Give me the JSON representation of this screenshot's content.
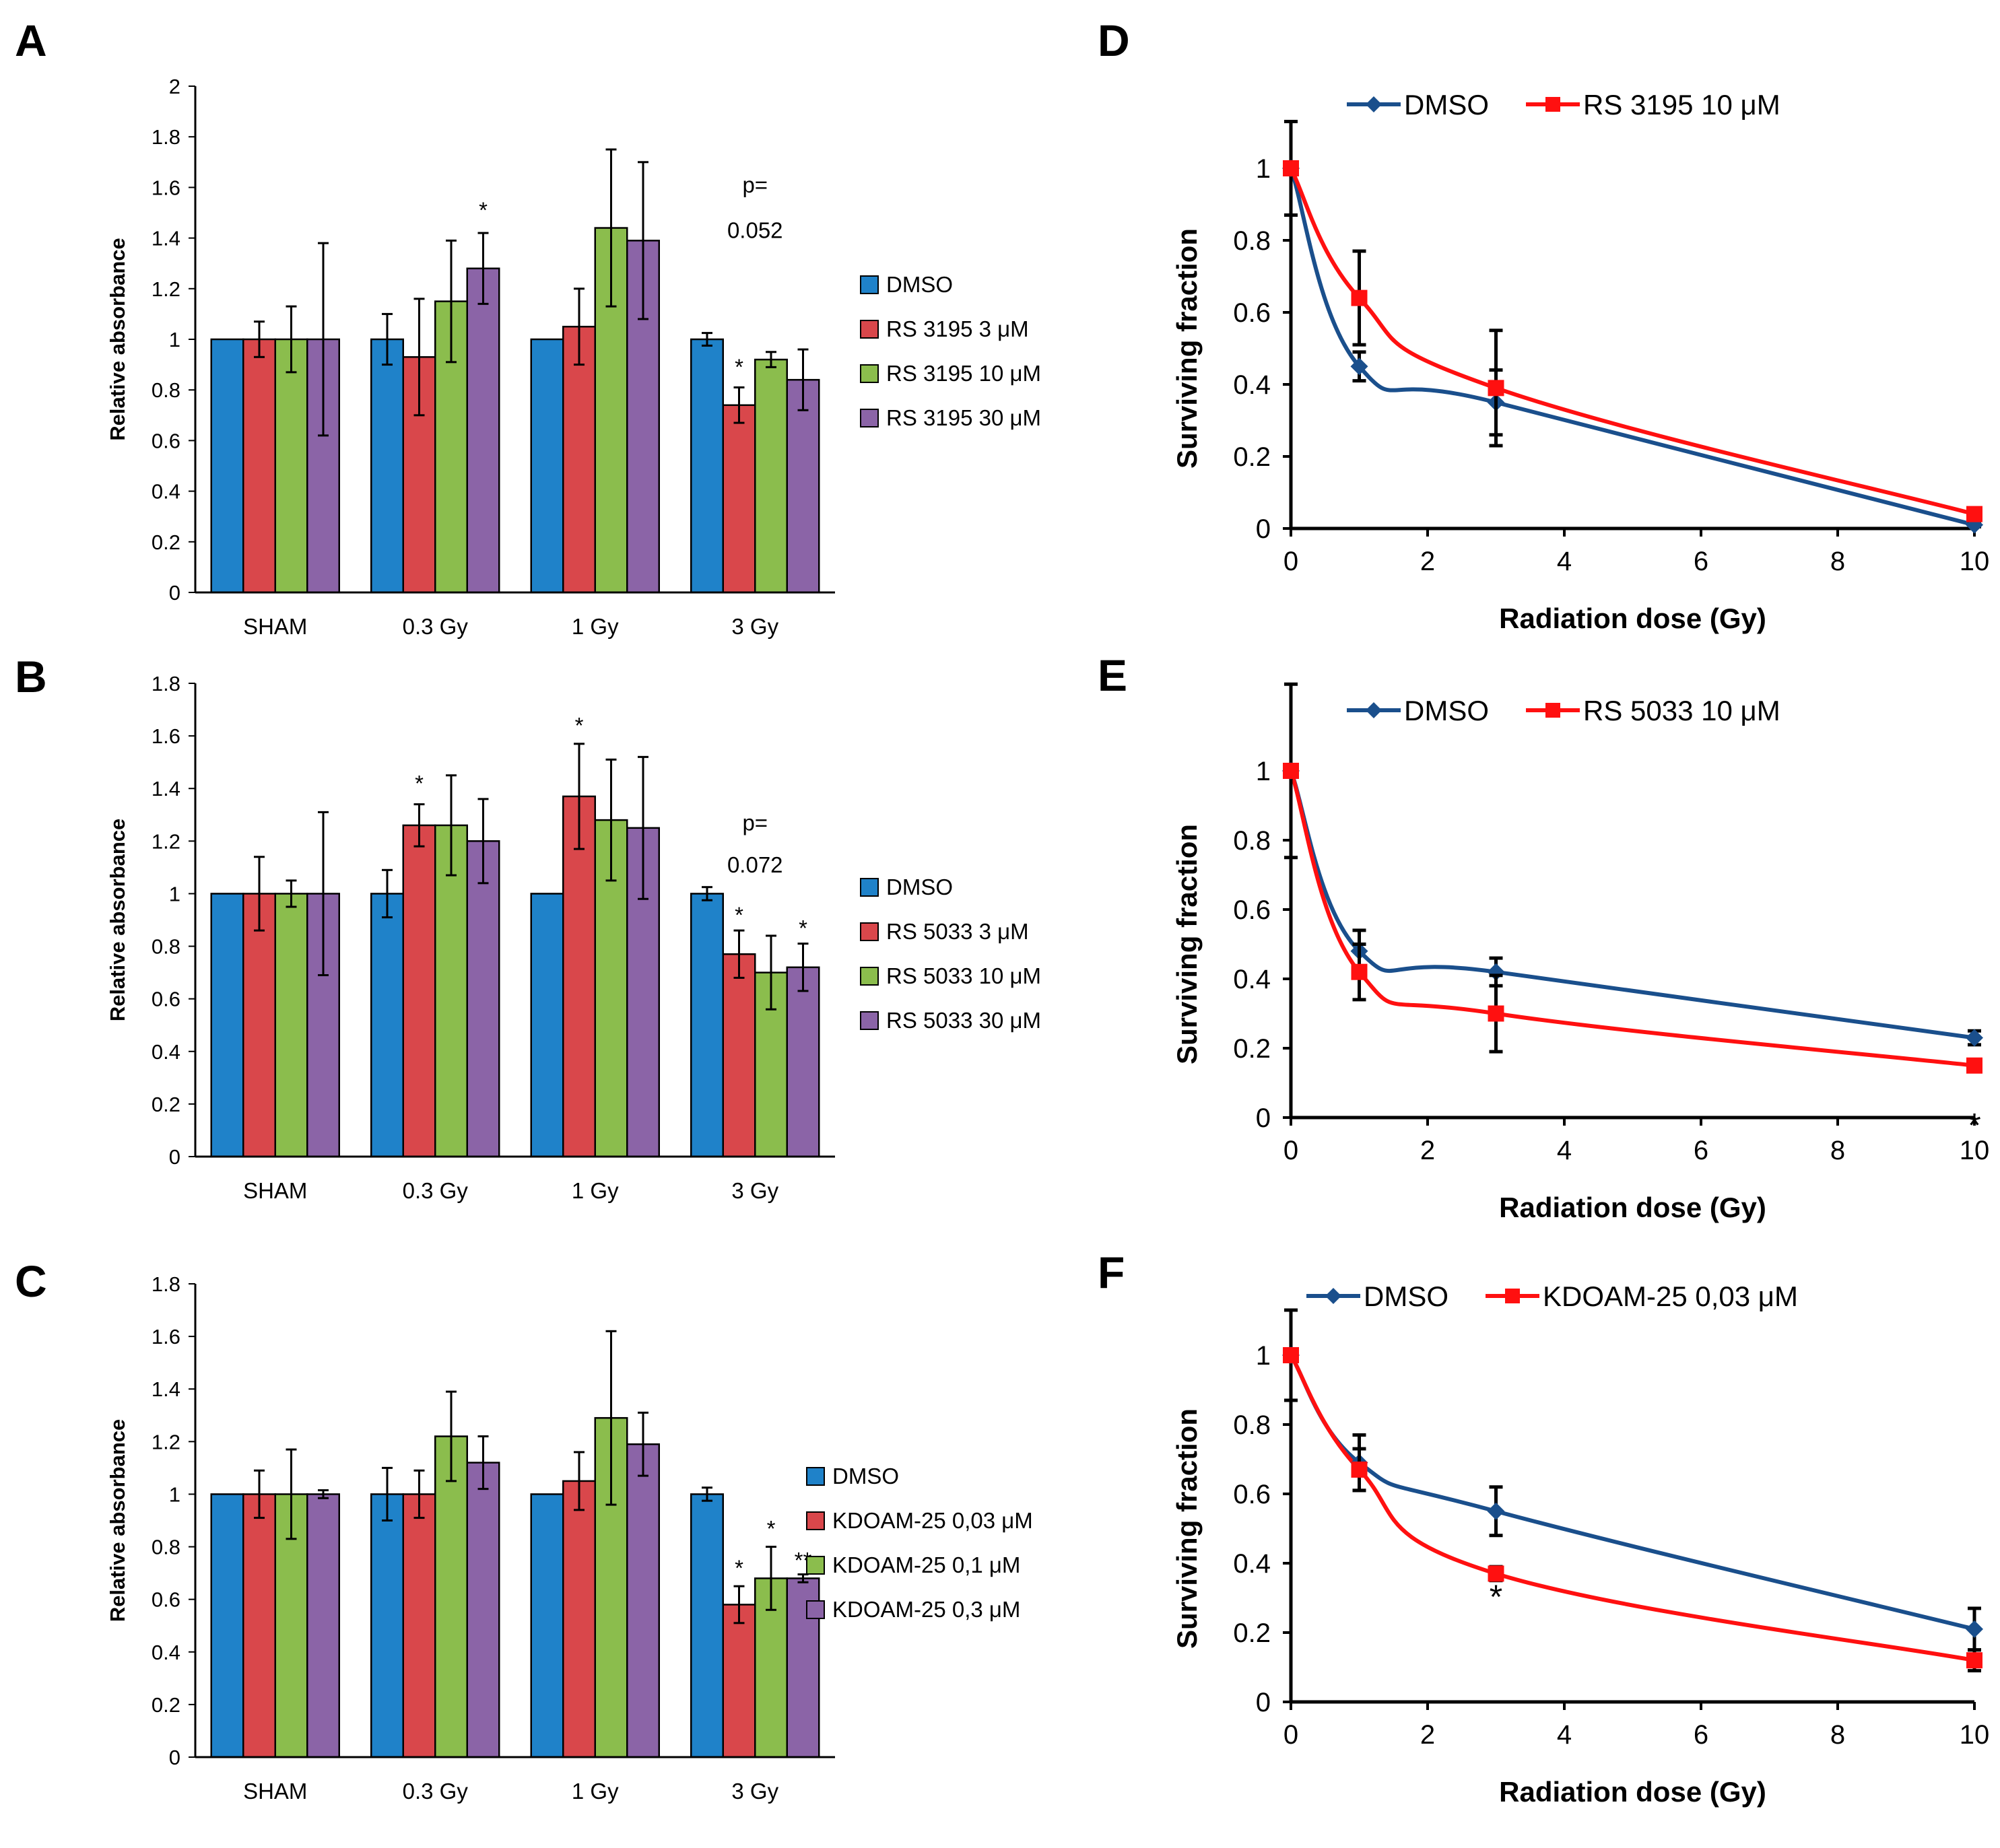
{
  "colors": {
    "dmso_bar": "#1f82c9",
    "drug_low": "#d9474b",
    "drug_mid": "#8bbd4d",
    "drug_high": "#8b64a7",
    "dmso_line": "#1a4f8c",
    "drug_line": "#ff1010",
    "axis": "#000000"
  },
  "chart_data": [
    {
      "id": "A",
      "panel_label": "A",
      "type": "bar",
      "ylabel": "Relative  absorbance",
      "ylim": [
        0,
        2
      ],
      "yticks": [
        "0",
        "0.2",
        "0.4",
        "0.6",
        "0.8",
        "1",
        "1.2",
        "1.4",
        "1.6",
        "1.8",
        "2"
      ],
      "categories": [
        "SHAM",
        "0.3 Gy",
        "1 Gy",
        "3 Gy"
      ],
      "series": [
        {
          "name": "DMSO",
          "values": [
            1,
            1,
            1,
            1
          ],
          "errors": [
            0,
            0.1,
            0,
            0.025
          ]
        },
        {
          "name": "RS 3195 3 μM",
          "values": [
            1,
            0.93,
            1.05,
            0.74
          ],
          "errors": [
            0.07,
            0.23,
            0.15,
            0.07
          ]
        },
        {
          "name": "RS 3195 10 μM",
          "values": [
            1,
            1.15,
            1.44,
            0.92
          ],
          "errors": [
            0.13,
            0.24,
            0.31,
            0.03
          ]
        },
        {
          "name": "RS 3195 30 μM",
          "values": [
            1,
            1.28,
            1.39,
            0.84
          ],
          "errors": [
            0.38,
            0.14,
            0.31,
            0.12
          ]
        }
      ],
      "annotations": [
        {
          "text": "*",
          "category": 1,
          "series": 3,
          "y": 1.48
        },
        {
          "text": "*",
          "category": 3,
          "series": 1,
          "y": 0.86
        },
        {
          "text": "p=",
          "category": 3,
          "y": 1.58
        },
        {
          "text": "0.052",
          "category": 3,
          "y": 1.4
        }
      ]
    },
    {
      "id": "B",
      "panel_label": "B",
      "type": "bar",
      "ylabel": "Relative absorbance",
      "ylim": [
        0,
        1.8
      ],
      "yticks": [
        "0",
        "0.2",
        "0.4",
        "0.6",
        "0.8",
        "1",
        "1.2",
        "1.4",
        "1.6",
        "1.8"
      ],
      "categories": [
        "SHAM",
        "0.3 Gy",
        "1 Gy",
        "3 Gy"
      ],
      "series": [
        {
          "name": "DMSO",
          "values": [
            1,
            1,
            1,
            1
          ],
          "errors": [
            0,
            0.09,
            0,
            0.025
          ]
        },
        {
          "name": "RS 5033 3 μM",
          "values": [
            1,
            1.26,
            1.37,
            0.77
          ],
          "errors": [
            0.14,
            0.08,
            0.2,
            0.09
          ]
        },
        {
          "name": "RS 5033 10 μM",
          "values": [
            1,
            1.26,
            1.28,
            0.7
          ],
          "errors": [
            0.05,
            0.19,
            0.23,
            0.14
          ]
        },
        {
          "name": "RS 5033 30 μM",
          "values": [
            1,
            1.2,
            1.25,
            0.72
          ],
          "errors": [
            0.31,
            0.16,
            0.27,
            0.09
          ]
        }
      ],
      "annotations": [
        {
          "text": "*",
          "category": 1,
          "series": 1,
          "y": 1.39
        },
        {
          "text": "*",
          "category": 2,
          "series": 1,
          "y": 1.61
        },
        {
          "text": "*",
          "category": 3,
          "series": 1,
          "y": 0.89
        },
        {
          "text": "*",
          "category": 3,
          "series": 3,
          "y": 0.84
        },
        {
          "text": "p=",
          "category": 3,
          "y": 1.24
        },
        {
          "text": "0.072",
          "category": 3,
          "y": 1.08
        }
      ]
    },
    {
      "id": "C",
      "panel_label": "C",
      "type": "bar",
      "ylabel": "Relative absorbance",
      "ylim": [
        0,
        1.8
      ],
      "yticks": [
        "0",
        "0.2",
        "0.4",
        "0.6",
        "0.8",
        "1",
        "1.2",
        "1.4",
        "1.6",
        "1.8"
      ],
      "categories": [
        "SHAM",
        "0.3 Gy",
        "1 Gy",
        "3 Gy"
      ],
      "series": [
        {
          "name": "DMSO",
          "values": [
            1,
            1,
            1,
            1
          ],
          "errors": [
            0,
            0.1,
            0,
            0.025
          ]
        },
        {
          "name": "KDOAM-25 0,03 μM",
          "values": [
            1,
            1,
            1.05,
            0.58
          ],
          "errors": [
            0.09,
            0.09,
            0.11,
            0.07
          ]
        },
        {
          "name": "KDOAM-25 0,1 μM",
          "values": [
            1,
            1.22,
            1.29,
            0.68
          ],
          "errors": [
            0.17,
            0.17,
            0.33,
            0.12
          ]
        },
        {
          "name": "KDOAM-25 0,3 μM",
          "values": [
            1,
            1.12,
            1.19,
            0.68
          ],
          "errors": [
            0.015,
            0.1,
            0.12,
            0.015
          ]
        }
      ],
      "annotations": [
        {
          "text": "*",
          "category": 3,
          "series": 1,
          "y": 0.69
        },
        {
          "text": "*",
          "category": 3,
          "series": 2,
          "y": 0.84
        },
        {
          "text": "**",
          "category": 3,
          "series": 3,
          "y": 0.72
        }
      ]
    },
    {
      "id": "D",
      "panel_label": "D",
      "type": "line",
      "xlabel": "Radiation dose (Gy)",
      "ylabel": "Surviving fraction",
      "xlim": [
        0,
        10
      ],
      "ylim": [
        0,
        1
      ],
      "xticks": [
        "0",
        "2",
        "4",
        "6",
        "8",
        "10"
      ],
      "yticks": [
        "0",
        "0.2",
        "0.4",
        "0.6",
        "0.8",
        "1"
      ],
      "series": [
        {
          "name": "DMSO",
          "x": [
            0,
            1,
            3,
            10
          ],
          "y": [
            1,
            0.45,
            0.35,
            0.01
          ],
          "errors": [
            0.13,
            0.04,
            0.09,
            0.005
          ]
        },
        {
          "name": "RS 3195 10 μM",
          "x": [
            0,
            1,
            3,
            10
          ],
          "y": [
            1,
            0.64,
            0.39,
            0.04
          ],
          "errors": [
            0,
            0.13,
            0.16,
            0.005
          ]
        }
      ],
      "annotations": []
    },
    {
      "id": "E",
      "panel_label": "E",
      "type": "line",
      "xlabel": "Radiation dose (Gy)",
      "ylabel": "Surviving fraction",
      "xlim": [
        0,
        10
      ],
      "ylim": [
        0,
        1
      ],
      "xticks": [
        "0",
        "2",
        "4",
        "6",
        "8",
        "10"
      ],
      "yticks": [
        "0",
        "0.2",
        "0.4",
        "0.6",
        "0.8",
        "1"
      ],
      "series": [
        {
          "name": "DMSO",
          "x": [
            0,
            1,
            3,
            10
          ],
          "y": [
            1,
            0.48,
            0.42,
            0.23
          ],
          "errors": [
            0.25,
            0.06,
            0.04,
            0.02
          ]
        },
        {
          "name": "RS 5033 10 μM",
          "x": [
            0,
            1,
            3,
            10
          ],
          "y": [
            1,
            0.42,
            0.3,
            0.15
          ],
          "errors": [
            0,
            0.08,
            0.11,
            0.005
          ]
        }
      ],
      "annotations": [
        {
          "text": "*",
          "x": 10,
          "y": -0.055
        }
      ]
    },
    {
      "id": "F",
      "panel_label": "F",
      "type": "line",
      "xlabel": "Radiation dose (Gy)",
      "ylabel": "Surviving fraction",
      "xlim": [
        0,
        10
      ],
      "ylim": [
        0,
        1
      ],
      "xticks": [
        "0",
        "2",
        "4",
        "6",
        "8",
        "10"
      ],
      "yticks": [
        "0",
        "0.2",
        "0.4",
        "0.6",
        "0.8",
        "1"
      ],
      "series": [
        {
          "name": "DMSO",
          "x": [
            0,
            1,
            3,
            10
          ],
          "y": [
            1,
            0.69,
            0.55,
            0.21
          ],
          "errors": [
            0.13,
            0.08,
            0.07,
            0.06
          ]
        },
        {
          "name": "KDOAM-25 0,03 μM",
          "x": [
            0,
            1,
            3,
            10
          ],
          "y": [
            1,
            0.67,
            0.37,
            0.12
          ],
          "errors": [
            0,
            0.06,
            0.02,
            0.03
          ]
        }
      ],
      "annotations": [
        {
          "text": "*",
          "x": 3,
          "y": 0.27
        }
      ]
    }
  ]
}
